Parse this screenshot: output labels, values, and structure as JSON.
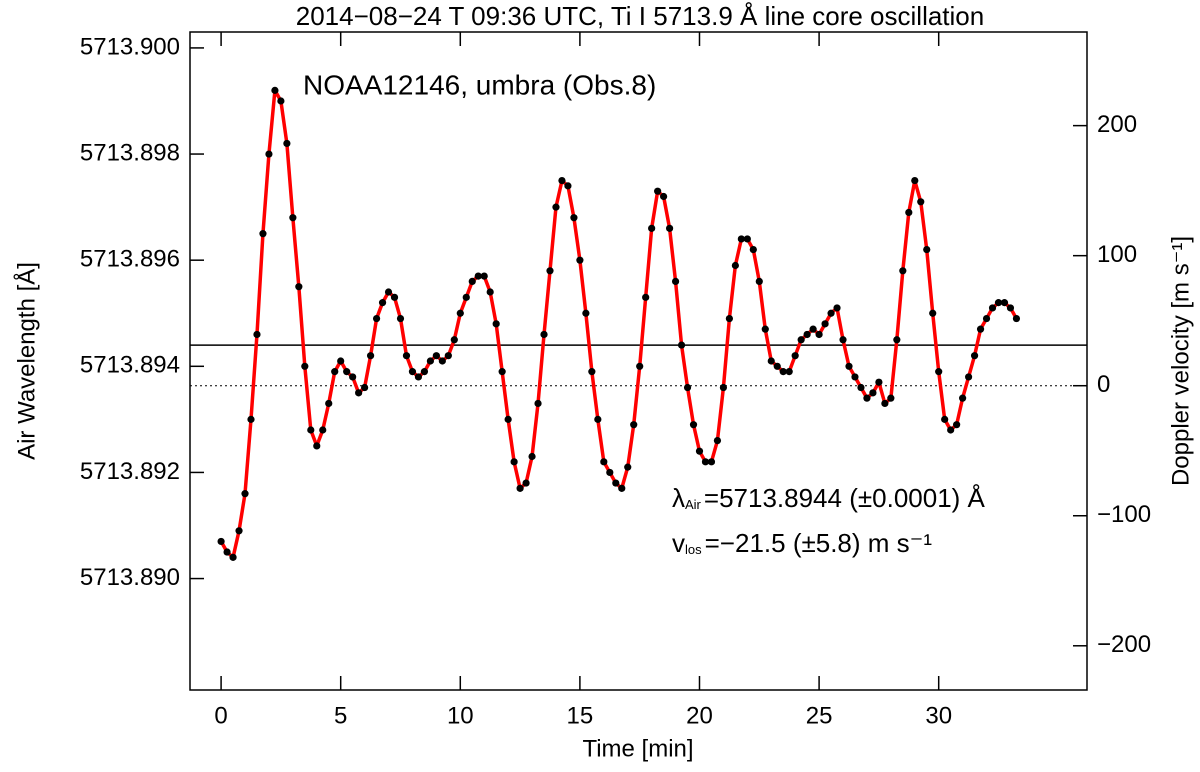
{
  "chart_data": {
    "type": "line",
    "title": "2014−08−24 T 09:36 UTC, Ti I 5713.9 Å line core oscillation",
    "xlabel": "Time [min]",
    "ylabel": "Air Wavelength [Å]",
    "y2label": "Doppler velocity [m s⁻¹]",
    "annotation": "NOAA12146, umbra (Obs.8)",
    "annotation_color": "#ff0000",
    "stats": [
      {
        "symbol": "λ",
        "sub": "Air",
        "text": "=5713.8944 (±0.0001) Å"
      },
      {
        "symbol": "v",
        "sub": "los",
        "text": "=−21.5 (±5.8) m s⁻¹"
      }
    ],
    "color": "#ff0000",
    "marker_color": "#000000",
    "hlines": [
      {
        "value": 5713.8944,
        "style": "solid"
      },
      {
        "value": 0,
        "axis": "y2",
        "style": "dotted"
      }
    ],
    "xlim": [
      -1.3,
      36.2
    ],
    "xticks": [
      0,
      5,
      10,
      15,
      20,
      25,
      30
    ],
    "ylim": [
      5713.8879,
      5713.9003
    ],
    "yticks": [
      {
        "value": 5713.89,
        "label": "5713.890"
      },
      {
        "value": 5713.892,
        "label": "5713.892"
      },
      {
        "value": 5713.894,
        "label": "5713.894"
      },
      {
        "value": 5713.896,
        "label": "5713.896"
      },
      {
        "value": 5713.898,
        "label": "5713.898"
      },
      {
        "value": 5713.9,
        "label": "5713.900"
      }
    ],
    "y2lim": [
      -234,
      272
    ],
    "y2ticks": [
      {
        "value": -200,
        "label": "−200"
      },
      {
        "value": -100,
        "label": "−100"
      },
      0,
      100,
      200
    ],
    "x": [
      0,
      0.25,
      0.5,
      0.75,
      1,
      1.25,
      1.5,
      1.75,
      2,
      2.25,
      2.5,
      2.75,
      3,
      3.25,
      3.5,
      3.75,
      4,
      4.25,
      4.5,
      4.75,
      5,
      5.25,
      5.5,
      5.75,
      6,
      6.25,
      6.5,
      6.75,
      7,
      7.25,
      7.5,
      7.75,
      8,
      8.25,
      8.5,
      8.75,
      9,
      9.25,
      9.5,
      9.75,
      10,
      10.25,
      10.5,
      10.75,
      11,
      11.25,
      11.5,
      11.75,
      12,
      12.25,
      12.5,
      12.75,
      13,
      13.25,
      13.5,
      13.75,
      14,
      14.25,
      14.5,
      14.75,
      15,
      15.25,
      15.5,
      15.75,
      16,
      16.25,
      16.5,
      16.75,
      17,
      17.25,
      17.5,
      17.75,
      18,
      18.25,
      18.5,
      18.75,
      19,
      19.25,
      19.5,
      19.75,
      20,
      20.25,
      20.5,
      20.75,
      21,
      21.25,
      21.5,
      21.75,
      22,
      22.25,
      22.5,
      22.75,
      23,
      23.25,
      23.5,
      23.75,
      24,
      24.25,
      24.5,
      24.75,
      25,
      25.25,
      25.5,
      25.75,
      26,
      26.25,
      26.5,
      26.75,
      27,
      27.25,
      27.5,
      27.75,
      28,
      28.25,
      28.5,
      28.75,
      29,
      29.25,
      29.5,
      29.75,
      30,
      30.25,
      30.5,
      30.75,
      31,
      31.25,
      31.5,
      31.75,
      32,
      32.25,
      32.5,
      32.75,
      33,
      33.25
    ],
    "values": [
      5713.8907,
      5713.8905,
      5713.8904,
      5713.8909,
      5713.8916,
      5713.893,
      5713.8946,
      5713.8965,
      5713.898,
      5713.8992,
      5713.899,
      5713.8982,
      5713.8968,
      5713.8955,
      5713.894,
      5713.8928,
      5713.8925,
      5713.8928,
      5713.8933,
      5713.8939,
      5713.8941,
      5713.8939,
      5713.8938,
      5713.8935,
      5713.8936,
      5713.8942,
      5713.8949,
      5713.8952,
      5713.8954,
      5713.8953,
      5713.8949,
      5713.8942,
      5713.8939,
      5713.8938,
      5713.8939,
      5713.8941,
      5713.8942,
      5713.8941,
      5713.8942,
      5713.8945,
      5713.895,
      5713.8953,
      5713.8956,
      5713.8957,
      5713.8957,
      5713.8954,
      5713.8948,
      5713.8939,
      5713.893,
      5713.8922,
      5713.8917,
      5713.8918,
      5713.8923,
      5713.8933,
      5713.8946,
      5713.8958,
      5713.897,
      5713.8975,
      5713.8974,
      5713.8968,
      5713.896,
      5713.895,
      5713.8939,
      5713.893,
      5713.8922,
      5713.892,
      5713.8918,
      5713.8917,
      5713.8921,
      5713.8929,
      5713.894,
      5713.8953,
      5713.8966,
      5713.8973,
      5713.8972,
      5713.8966,
      5713.8956,
      5713.8944,
      5713.8936,
      5713.8929,
      5713.8924,
      5713.8922,
      5713.8922,
      5713.8926,
      5713.8936,
      5713.8949,
      5713.8959,
      5713.8964,
      5713.8964,
      5713.8962,
      5713.8956,
      5713.8947,
      5713.8941,
      5713.894,
      5713.8939,
      5713.8939,
      5713.8942,
      5713.8945,
      5713.8946,
      5713.8947,
      5713.8946,
      5713.8948,
      5713.895,
      5713.8951,
      5713.8945,
      5713.894,
      5713.8938,
      5713.8936,
      5713.8934,
      5713.8935,
      5713.8937,
      5713.8933,
      5713.8934,
      5713.8945,
      5713.8958,
      5713.8969,
      5713.8975,
      5713.8971,
      5713.8962,
      5713.895,
      5713.8939,
      5713.893,
      5713.8928,
      5713.8929,
      5713.8934,
      5713.8938,
      5713.8942,
      5713.8947,
      5713.8949,
      5713.8951,
      5713.8952,
      5713.8952,
      5713.8951,
      5713.8949
    ]
  }
}
